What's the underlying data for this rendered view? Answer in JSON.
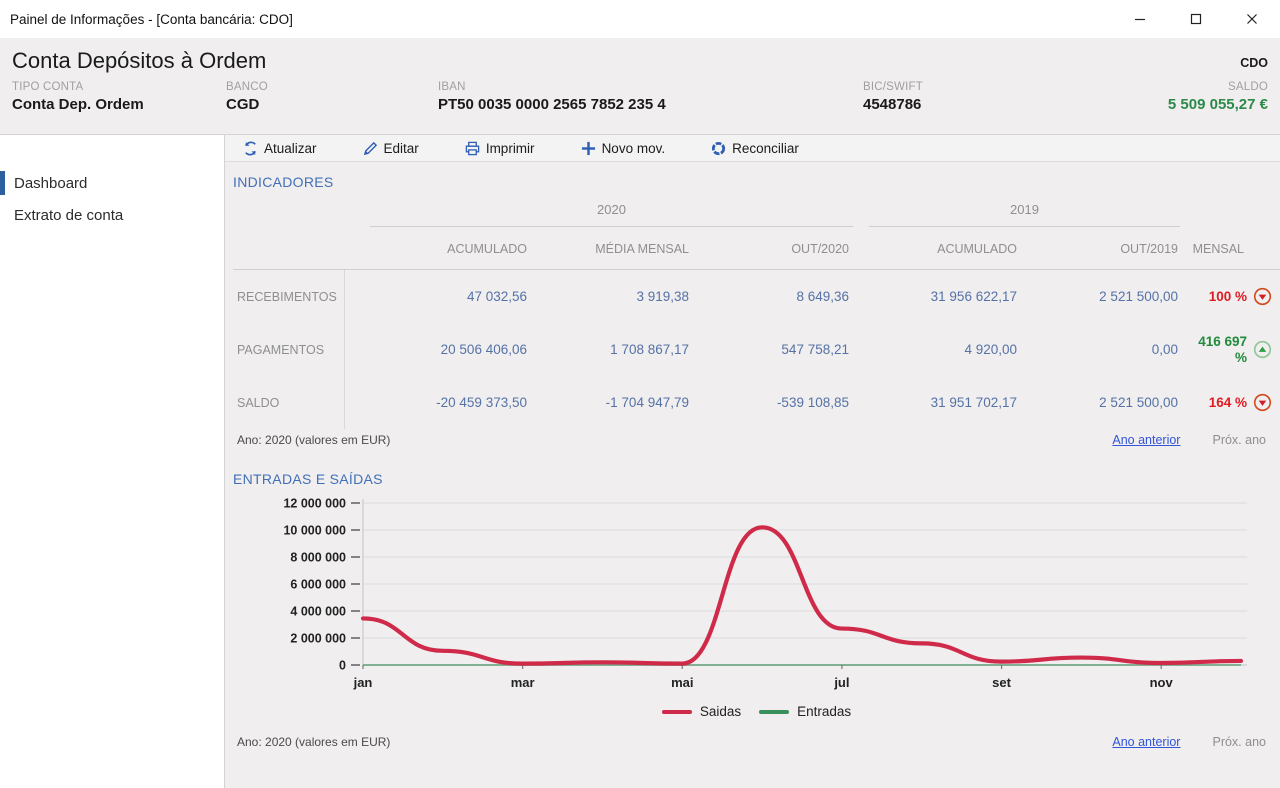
{
  "window": {
    "title": "Painel de Informações - [Conta bancária: CDO]"
  },
  "header": {
    "title": "Conta Depósitos à Ordem",
    "account_code": "CDO",
    "fields": [
      {
        "label": "TIPO CONTA",
        "value": "Conta Dep. Ordem"
      },
      {
        "label": "BANCO",
        "value": "CGD"
      },
      {
        "label": "IBAN",
        "value": "PT50 0035 0000 2565 7852 235 4"
      },
      {
        "label": "BIC/SWIFT",
        "value": "4548786"
      },
      {
        "label": "SALDO",
        "value": "5 509 055,27 €"
      }
    ],
    "saldo_color": "#2b8a4b"
  },
  "sidebar": {
    "items": [
      {
        "label": "Dashboard",
        "active": true
      },
      {
        "label": "Extrato de conta",
        "active": false
      }
    ]
  },
  "toolbar": {
    "buttons": [
      {
        "label": "Atualizar",
        "icon": "refresh-icon"
      },
      {
        "label": "Editar",
        "icon": "pencil-icon"
      },
      {
        "label": "Imprimir",
        "icon": "printer-icon"
      },
      {
        "label": "Novo mov.",
        "icon": "plus-icon"
      },
      {
        "label": "Reconciliar",
        "icon": "reconcile-icon"
      }
    ],
    "icon_color": "#2f5fb3"
  },
  "indicators": {
    "section_title": "INDICADORES",
    "year_groups": [
      {
        "label": "2020"
      },
      {
        "label": "2019"
      }
    ],
    "columns": [
      "ACUMULADO",
      "MÉDIA MENSAL",
      "OUT/2020",
      "ACUMULADO",
      "OUT/2019",
      "MENSAL"
    ],
    "rows": [
      {
        "label": "RECEBIMENTOS",
        "values": [
          "47 032,56",
          "3 919,38",
          "8 649,36",
          "31 956 622,17",
          "2 521 500,00"
        ],
        "mensal": "100 %",
        "trend": "down"
      },
      {
        "label": "PAGAMENTOS",
        "values": [
          "20 506 406,06",
          "1 708 867,17",
          "547 758,21",
          "4 920,00",
          "0,00"
        ],
        "mensal": "416 697 %",
        "trend": "up"
      },
      {
        "label": "SALDO",
        "values": [
          "-20 459 373,50",
          "-1 704 947,79",
          "-539 108,85",
          "31 951 702,17",
          "2 521 500,00"
        ],
        "mensal": "164 %",
        "trend": "down"
      }
    ],
    "footer": {
      "year_note": "Ano: 2020 (valores em EUR)",
      "prev_link": "Ano anterior",
      "next_link": "Próx. ano"
    }
  },
  "chart_section": {
    "title": "ENTRADAS E SAÍDAS",
    "footer": {
      "year_note": "Ano: 2020 (valores em EUR)",
      "prev_link": "Ano anterior",
      "next_link": "Próx. ano"
    }
  },
  "chart_data": {
    "type": "line",
    "x": [
      "jan",
      "fev",
      "mar",
      "abr",
      "mai",
      "jun",
      "jul",
      "ago",
      "set",
      "out",
      "nov",
      "dez"
    ],
    "x_tick_labels": [
      "jan",
      "mar",
      "mai",
      "jul",
      "set",
      "nov"
    ],
    "series": [
      {
        "name": "Saidas",
        "color": "#cf2a49",
        "values": [
          3450000,
          1050000,
          100000,
          200000,
          100000,
          10200000,
          2700000,
          1600000,
          250000,
          550000,
          150000,
          300000
        ]
      },
      {
        "name": "Entradas",
        "color": "#3a8e5a",
        "values": [
          0,
          0,
          0,
          0,
          0,
          0,
          0,
          0,
          0,
          0,
          0,
          0
        ]
      }
    ],
    "ylim": [
      0,
      12000000
    ],
    "y_ticks": [
      0,
      2000000,
      4000000,
      6000000,
      8000000,
      10000000,
      12000000
    ],
    "y_tick_labels": [
      "0",
      "2 000 000",
      "4 000 000",
      "6 000 000",
      "8 000 000",
      "10 000 000",
      "12 000 000"
    ],
    "grid": true,
    "legend_position": "bottom"
  },
  "colors": {
    "accent_blue": "#4170b8",
    "value_blue": "#5572a7",
    "positive_green": "#218a3c",
    "negative_red": "#e01b22",
    "link_blue": "#3355d8"
  }
}
